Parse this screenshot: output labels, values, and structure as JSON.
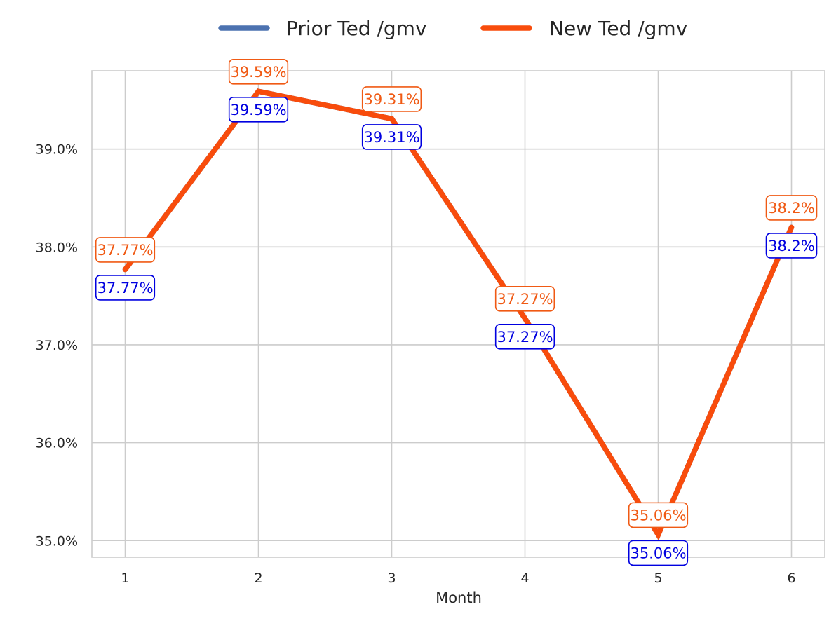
{
  "chart_data": {
    "type": "line",
    "title": "",
    "xlabel": "Month",
    "ylabel": "",
    "x": [
      1,
      2,
      3,
      4,
      5,
      6
    ],
    "x_tick_labels": [
      "1",
      "2",
      "3",
      "4",
      "5",
      "6"
    ],
    "y_ticks": [
      35.0,
      36.0,
      37.0,
      38.0,
      39.0
    ],
    "y_tick_labels": [
      "35.0%",
      "36.0%",
      "37.0%",
      "38.0%",
      "39.0%"
    ],
    "xlim": [
      0.75,
      6.25
    ],
    "ylim": [
      34.83,
      39.8
    ],
    "grid": true,
    "legend_position": "top-center",
    "series": [
      {
        "name": "Prior Ted /gmv",
        "color": "#4c72b0",
        "label_color": "#0000e0",
        "values": [
          37.77,
          39.59,
          39.31,
          37.27,
          35.06,
          38.2
        ],
        "data_labels": [
          "37.77%",
          "39.59%",
          "39.31%",
          "37.27%",
          "35.06%",
          "38.2%"
        ]
      },
      {
        "name": "New Ted /gmv",
        "color": "#f84c0c",
        "label_color": "#f05a14",
        "values": [
          37.77,
          39.59,
          39.31,
          37.27,
          35.06,
          38.2
        ],
        "data_labels": [
          "37.77%",
          "39.59%",
          "39.31%",
          "37.27%",
          "35.06%",
          "38.2%"
        ]
      }
    ]
  }
}
